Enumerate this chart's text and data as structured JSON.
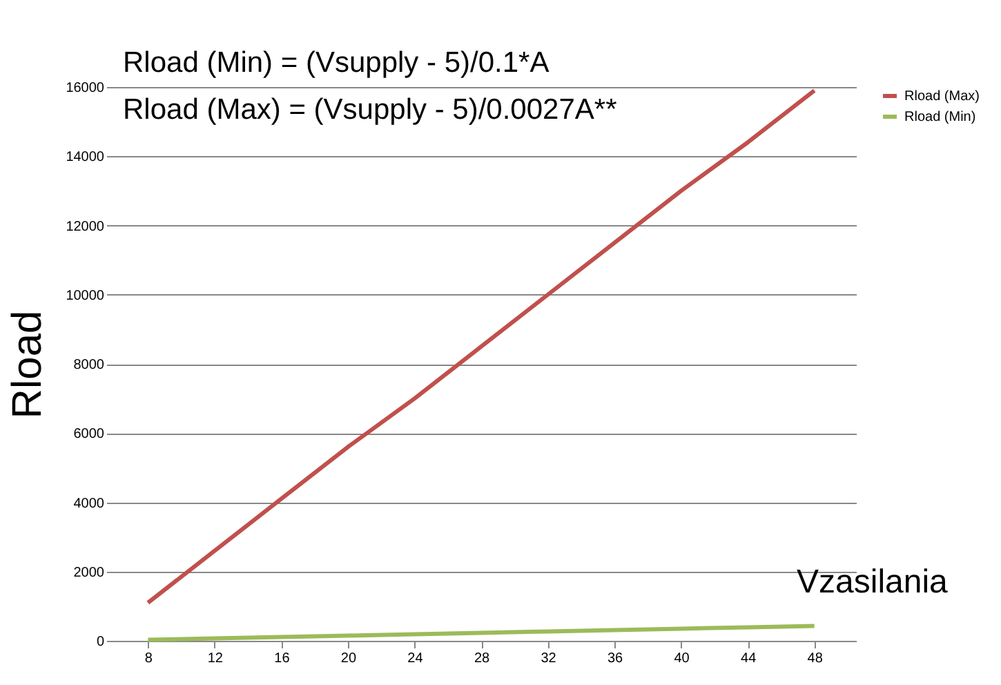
{
  "chart_data": {
    "type": "line",
    "xlabel": "Vzasilania",
    "ylabel": "Rload",
    "annotations": [
      "Rload (Min) = (Vsupply - 5)/0.1*A",
      "Rload (Max) = (Vsupply - 5)/0.0027A**"
    ],
    "x": [
      8,
      12,
      16,
      20,
      24,
      28,
      32,
      36,
      40,
      44,
      48
    ],
    "series": [
      {
        "name": "Rload (Max)",
        "color": "#c0504d",
        "values": [
          1100,
          2600,
          4100,
          5600,
          7000,
          8500,
          10000,
          11500,
          13000,
          14400,
          15900
        ]
      },
      {
        "name": "Rload (Min)",
        "color": "#9bbb59",
        "values": [
          30,
          70,
          110,
          150,
          190,
          230,
          270,
          310,
          350,
          390,
          430
        ]
      }
    ],
    "xlim": [
      5.5,
      50.5
    ],
    "ylim": [
      0,
      16000
    ],
    "xticks": [
      8,
      12,
      16,
      20,
      24,
      28,
      32,
      36,
      40,
      44,
      48
    ],
    "yticks": [
      0,
      2000,
      4000,
      6000,
      8000,
      10000,
      12000,
      14000,
      16000
    ],
    "grid": "y",
    "legend": "right",
    "line_style": "solid",
    "marker": "none"
  }
}
